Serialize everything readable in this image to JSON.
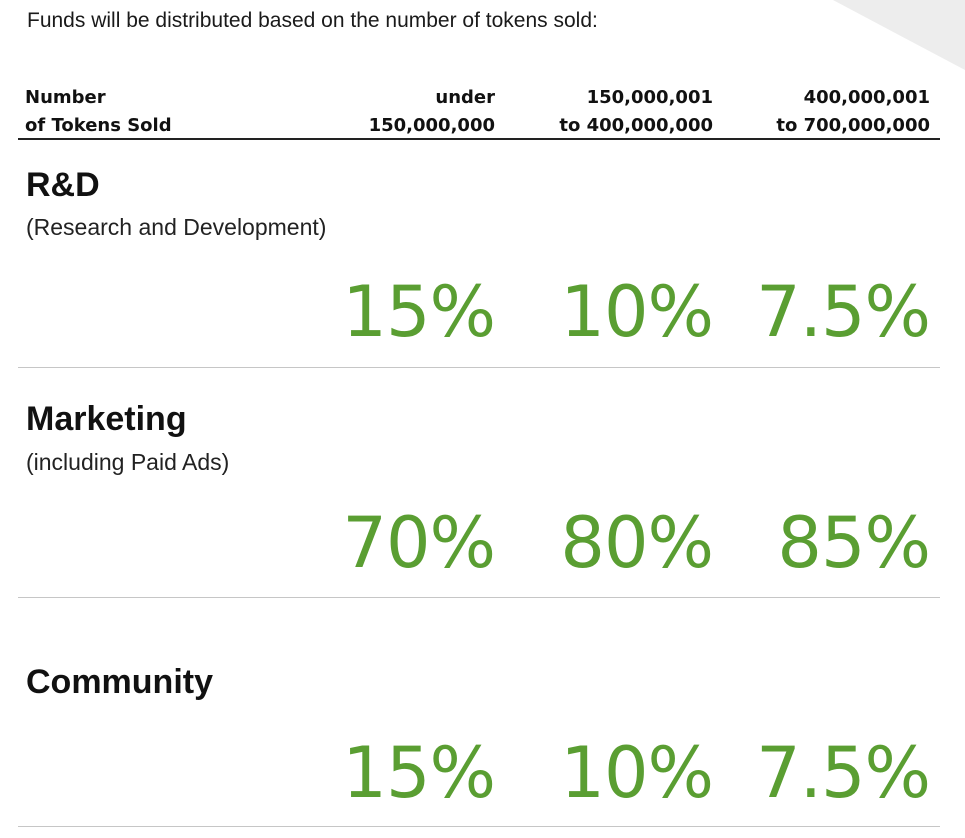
{
  "intro_text": "Funds will be distributed based on the number of tokens sold:",
  "accent_color": "#5a9e32",
  "header": {
    "label_line1": "Number",
    "label_line2": "of Tokens Sold",
    "columns": [
      {
        "line1": "under",
        "line2": "150,000,000"
      },
      {
        "line1": "150,000,001",
        "line2": "to 400,000,000"
      },
      {
        "line1": "400,000,001",
        "line2": "to 700,000,000"
      }
    ]
  },
  "rows": [
    {
      "title": "R&D",
      "subtitle": "(Research and Development)",
      "values": [
        "15%",
        "10%",
        "7.5%"
      ]
    },
    {
      "title": "Marketing",
      "subtitle": "(including Paid Ads)",
      "values": [
        "70%",
        "80%",
        "85%"
      ]
    },
    {
      "title": "Community",
      "subtitle": "",
      "values": [
        "15%",
        "10%",
        "7.5%"
      ]
    }
  ]
}
